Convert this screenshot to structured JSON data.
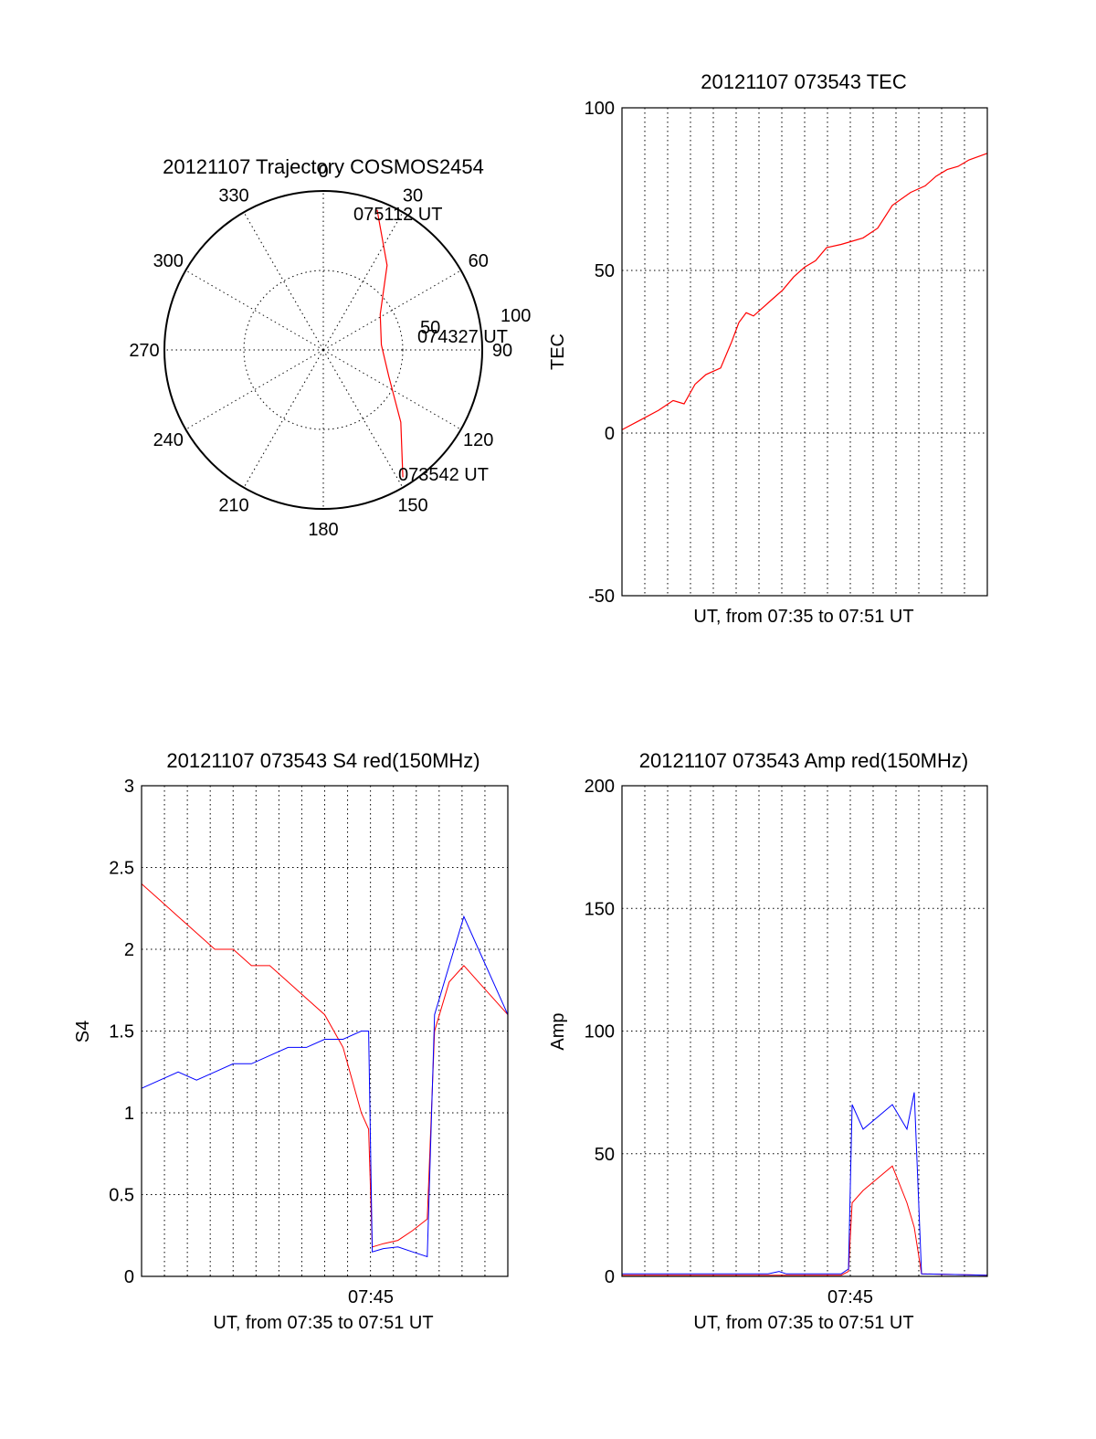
{
  "chart_data": [
    {
      "type": "polar",
      "title": "20121107 Trajectory COSMOS2454",
      "angle_labels": [
        "0",
        "30",
        "60",
        "90",
        "120",
        "150",
        "180",
        "210",
        "240",
        "270",
        "300",
        "330"
      ],
      "radius_labels": [
        "50",
        "100"
      ],
      "annotations": [
        "075112 UT",
        "074327 UT",
        "073542 UT"
      ],
      "trajectory": {
        "points": [
          {
            "azimuth": 21,
            "elevation": 5,
            "time": "075112 UT"
          },
          {
            "azimuth": 37,
            "elevation": 30
          },
          {
            "azimuth": 58,
            "elevation": 52
          },
          {
            "azimuth": 85,
            "elevation": 57,
            "time": "074327 UT"
          },
          {
            "azimuth": 112,
            "elevation": 50
          },
          {
            "azimuth": 133,
            "elevation": 30
          },
          {
            "azimuth": 148,
            "elevation": 5,
            "time": "073542 UT"
          }
        ],
        "color": "#ff0000"
      }
    },
    {
      "type": "line",
      "title": "20121107 073543 TEC",
      "xlabel": "UT, from 07:35 to 07:51 UT",
      "ylabel": "TEC",
      "ylim": [
        -50,
        100
      ],
      "y_ticks": [
        "-50",
        "0",
        "50",
        "100"
      ],
      "grid": true,
      "series": [
        {
          "color": "#ff0000",
          "x": [
            0,
            0.05,
            0.1,
            0.14,
            0.17,
            0.2,
            0.23,
            0.27,
            0.3,
            0.32,
            0.34,
            0.36,
            0.38,
            0.41,
            0.44,
            0.47,
            0.5,
            0.53,
            0.56,
            0.6,
            0.63,
            0.66,
            0.7,
            0.74,
            0.79,
            0.83,
            0.86,
            0.89,
            0.92,
            0.95,
            1.0
          ],
          "values": [
            1,
            4,
            7,
            10,
            9,
            15,
            18,
            20,
            28,
            34,
            37,
            36,
            38,
            41,
            44,
            48,
            51,
            53,
            57,
            58,
            59,
            60,
            63,
            70,
            74,
            76,
            79,
            81,
            82,
            84,
            86
          ]
        }
      ]
    },
    {
      "type": "line",
      "title": "20121107 073543 S4 red(150MHz)",
      "xlabel": "UT, from 07:35 to 07:51 UT",
      "ylabel": "S4",
      "ylim": [
        0,
        3
      ],
      "x_ticks": [
        "07:45"
      ],
      "y_ticks": [
        "0",
        "0.5",
        "1",
        "1.5",
        "2",
        "2.5",
        "3"
      ],
      "grid": true,
      "series": [
        {
          "color": "#ff0000",
          "x": [
            0,
            0.05,
            0.1,
            0.15,
            0.2,
            0.25,
            0.3,
            0.35,
            0.4,
            0.45,
            0.5,
            0.55,
            0.6,
            0.62,
            0.63,
            0.66,
            0.7,
            0.74,
            0.78,
            0.8,
            0.84,
            0.88,
            0.92,
            0.96,
            1.0
          ],
          "values": [
            2.4,
            2.3,
            2.2,
            2.1,
            2.0,
            2.0,
            1.9,
            1.9,
            1.8,
            1.7,
            1.6,
            1.4,
            1.0,
            0.9,
            0.18,
            0.2,
            0.22,
            0.28,
            0.35,
            1.5,
            1.8,
            1.9,
            1.8,
            1.7,
            1.6
          ]
        },
        {
          "color": "#0000ff",
          "x": [
            0,
            0.05,
            0.1,
            0.15,
            0.2,
            0.25,
            0.3,
            0.35,
            0.4,
            0.45,
            0.5,
            0.55,
            0.6,
            0.62,
            0.63,
            0.66,
            0.7,
            0.74,
            0.78,
            0.8,
            0.84,
            0.88,
            0.92,
            0.96,
            1.0
          ],
          "values": [
            1.15,
            1.2,
            1.25,
            1.2,
            1.25,
            1.3,
            1.3,
            1.35,
            1.4,
            1.4,
            1.45,
            1.45,
            1.5,
            1.5,
            0.15,
            0.17,
            0.18,
            0.15,
            0.12,
            1.6,
            1.9,
            2.2,
            2.0,
            1.8,
            1.6
          ]
        }
      ]
    },
    {
      "type": "line",
      "title": "20121107 073543 Amp red(150MHz)",
      "xlabel": "UT, from 07:35 to 07:51 UT",
      "ylabel": "Amp",
      "ylim": [
        0,
        200
      ],
      "x_ticks": [
        "07:45"
      ],
      "y_ticks": [
        "0",
        "50",
        "100",
        "150",
        "200"
      ],
      "grid": true,
      "series": [
        {
          "color": "#ff0000",
          "x": [
            0,
            0.4,
            0.5,
            0.6,
            0.62,
            0.63,
            0.66,
            0.7,
            0.74,
            0.78,
            0.8,
            0.82,
            1.0
          ],
          "values": [
            0.5,
            0.5,
            0.5,
            0.5,
            2,
            30,
            35,
            40,
            45,
            30,
            20,
            1,
            0.5
          ]
        },
        {
          "color": "#0000ff",
          "x": [
            0,
            0.2,
            0.4,
            0.43,
            0.45,
            0.6,
            0.62,
            0.63,
            0.66,
            0.7,
            0.74,
            0.78,
            0.8,
            0.82,
            1.0
          ],
          "values": [
            1,
            1,
            1,
            2,
            1,
            1,
            3,
            70,
            60,
            65,
            70,
            60,
            75,
            1,
            0.5
          ]
        }
      ]
    }
  ]
}
